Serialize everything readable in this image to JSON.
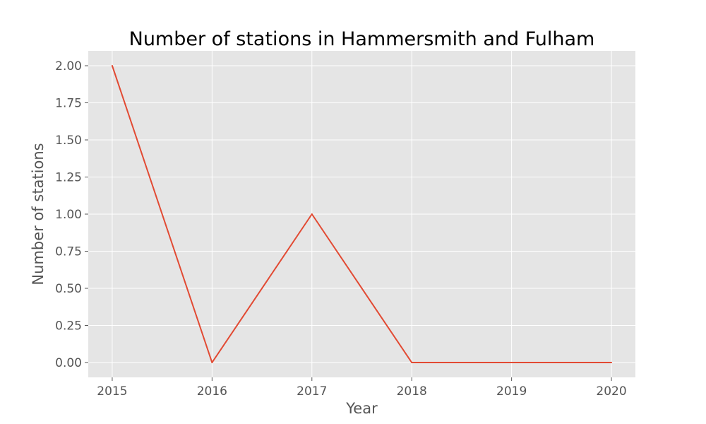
{
  "chart_data": {
    "type": "line",
    "title": "Number of stations in Hammersmith and Fulham",
    "xlabel": "Year",
    "ylabel": "Number of stations",
    "x": [
      2015,
      2016,
      2017,
      2018,
      2019,
      2020
    ],
    "xticks": [
      "2015",
      "2016",
      "2017",
      "2018",
      "2019",
      "2020"
    ],
    "yticks": [
      "0.00",
      "0.25",
      "0.50",
      "0.75",
      "1.00",
      "1.25",
      "1.50",
      "1.75",
      "2.00"
    ],
    "xlim": [
      2014.76,
      2020.24
    ],
    "ylim": [
      -0.1,
      2.1
    ],
    "grid": true,
    "series": [
      {
        "values": [
          2,
          0,
          1,
          0,
          0,
          0
        ],
        "color": "#E24A33"
      }
    ],
    "colors": {
      "plot_background": "#E5E5E5",
      "grid": "#FFFFFF",
      "text": "#555555"
    }
  }
}
